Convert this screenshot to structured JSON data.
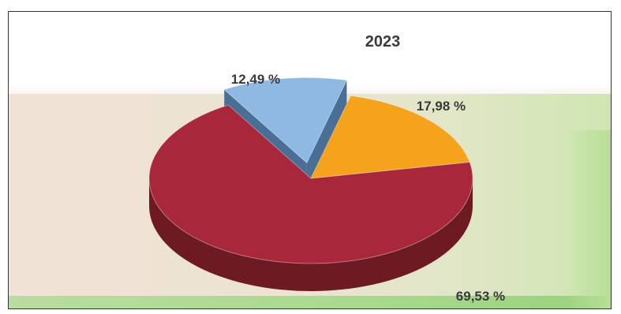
{
  "chart_data": {
    "type": "pie",
    "title": "2023",
    "slices": [
      {
        "value": 69.53,
        "label": "69,53 %",
        "color": "#a8273a",
        "side_color": "#6e1a22"
      },
      {
        "value": 12.49,
        "label": "12,49 %",
        "color": "#8fb8e2",
        "side_color": "#4a6f97",
        "exploded": true
      },
      {
        "value": 17.98,
        "label": "17,98 %",
        "color": "#f5a31c",
        "side_color": "#7a5a12"
      }
    ],
    "style": "3d-exploded",
    "legend": false
  }
}
